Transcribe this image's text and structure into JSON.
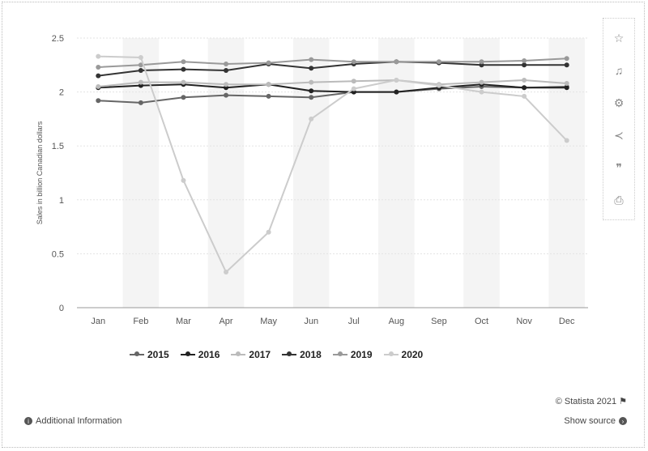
{
  "chart_data": {
    "type": "line",
    "categories": [
      "Jan",
      "Feb",
      "Mar",
      "Apr",
      "May",
      "Jun",
      "Jul",
      "Aug",
      "Sep",
      "Oct",
      "Nov",
      "Dec"
    ],
    "ylabel": "Sales in billion Canadian dollars",
    "ylim": [
      0,
      2.5
    ],
    "yticks": [
      "0",
      "0.5",
      "1",
      "1.5",
      "2",
      "2.5"
    ],
    "legend_position": "bottom",
    "series": [
      {
        "name": "2015",
        "color": "#666666",
        "values": [
          1.92,
          1.9,
          1.95,
          1.97,
          1.96,
          1.95,
          2.0,
          2.0,
          2.03,
          2.05,
          2.04,
          2.05
        ]
      },
      {
        "name": "2016",
        "color": "#222222",
        "values": [
          2.04,
          2.06,
          2.07,
          2.04,
          2.07,
          2.01,
          2.0,
          2.0,
          2.04,
          2.07,
          2.04,
          2.04
        ]
      },
      {
        "name": "2017",
        "color": "#bbbbbb",
        "values": [
          2.05,
          2.09,
          2.09,
          2.07,
          2.07,
          2.09,
          2.1,
          2.11,
          2.07,
          2.09,
          2.11,
          2.08
        ]
      },
      {
        "name": "2018",
        "color": "#333333",
        "values": [
          2.15,
          2.2,
          2.21,
          2.2,
          2.26,
          2.22,
          2.26,
          2.28,
          2.27,
          2.25,
          2.25,
          2.25
        ]
      },
      {
        "name": "2019",
        "color": "#999999",
        "values": [
          2.23,
          2.25,
          2.28,
          2.26,
          2.27,
          2.3,
          2.28,
          2.28,
          2.28,
          2.28,
          2.29,
          2.31
        ]
      },
      {
        "name": "2020",
        "color": "#cccccc",
        "values": [
          2.33,
          2.32,
          1.18,
          0.33,
          0.7,
          1.75,
          2.03,
          2.11,
          2.06,
          2.0,
          1.96,
          1.55
        ]
      }
    ]
  },
  "legend": [
    {
      "label": "2015",
      "color": "#666666"
    },
    {
      "label": "2016",
      "color": "#222222"
    },
    {
      "label": "2017",
      "color": "#bbbbbb"
    },
    {
      "label": "2018",
      "color": "#333333"
    },
    {
      "label": "2019",
      "color": "#999999"
    },
    {
      "label": "2020",
      "color": "#cccccc"
    }
  ],
  "toolbar": {
    "icons": [
      "star-icon",
      "bell-icon",
      "settings-icon",
      "share-icon",
      "quote-icon",
      "print-icon"
    ],
    "glyphs": [
      "☆",
      "♫",
      "⚙",
      "≺",
      "❞",
      "⎙"
    ]
  },
  "footer": {
    "credit": "© Statista 2021 ⚑",
    "additional_info": "Additional Information",
    "show_source": "Show source"
  }
}
